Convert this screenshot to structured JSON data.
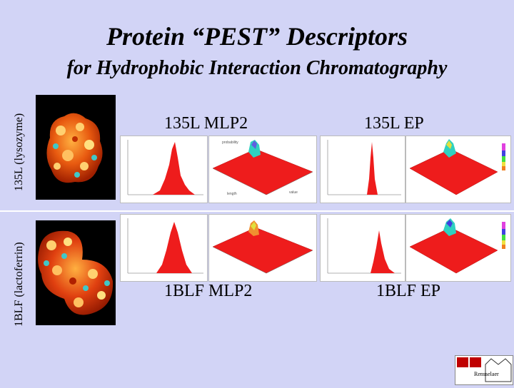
{
  "slide": {
    "title": "Protein “PEST” Descriptors",
    "subtitle": "for Hydrophobic Interaction Chromatography"
  },
  "rows": [
    {
      "label": "135L (lysozyme)",
      "panels": [
        {
          "label": "135L MLP2"
        },
        {
          "label": "135L EP"
        }
      ]
    },
    {
      "label": "1BLF (lactoferrin)",
      "panels": [
        {
          "label": "1BLF MLP2"
        },
        {
          "label": "1BLF EP"
        }
      ]
    }
  ],
  "plot_text": {
    "z_axis": "probability",
    "x_axis": "length",
    "y_axis": "value"
  },
  "logo": {
    "text": "Rensselaer"
  },
  "colors": {
    "background": "#d2d4f6",
    "surface": "#ee1c1c",
    "peak": "#2fd1c0"
  }
}
